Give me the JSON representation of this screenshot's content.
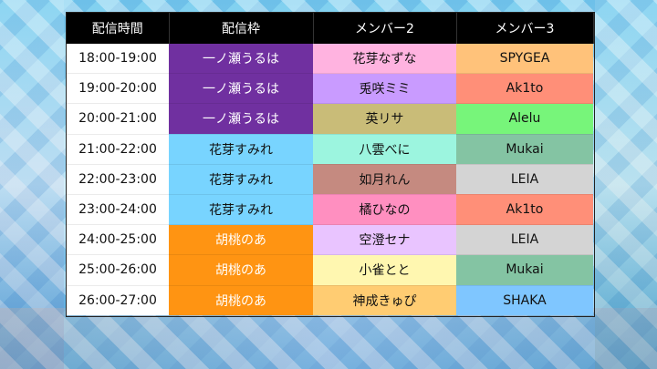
{
  "headers": [
    "配信時間",
    "配信枠",
    "メンバー2",
    "メンバー3"
  ],
  "rows": [
    {
      "time": "18:00-19:00",
      "host": "一ノ瀬うるは",
      "host_color": "#7030a0",
      "host_text": "#ffffff",
      "m2": "花芽なずな",
      "m2_color": "#ffb3e0",
      "m3": "SPYGEA",
      "m3_color": "#ffc27a"
    },
    {
      "time": "19:00-20:00",
      "host": "一ノ瀬うるは",
      "host_color": "#7030a0",
      "host_text": "#ffffff",
      "m2": "兎咲ミミ",
      "m2_color": "#c99bff",
      "m3": "Ak1to",
      "m3_color": "#ff8f78"
    },
    {
      "time": "20:00-21:00",
      "host": "一ノ瀬うるは",
      "host_color": "#7030a0",
      "host_text": "#ffffff",
      "m2": "英リサ",
      "m2_color": "#c9bc78",
      "m3": "Alelu",
      "m3_color": "#77f57a"
    },
    {
      "time": "21:00-22:00",
      "host": "花芽すみれ",
      "host_color": "#78d4ff",
      "host_text": "#111111",
      "m2": "八雲べに",
      "m2_color": "#9cf5df",
      "m3": "Mukai",
      "m3_color": "#84c4a3"
    },
    {
      "time": "22:00-23:00",
      "host": "花芽すみれ",
      "host_color": "#78d4ff",
      "host_text": "#111111",
      "m2": "如月れん",
      "m2_color": "#c58a80",
      "m3": "LEIA",
      "m3_color": "#d4d4d4"
    },
    {
      "time": "23:00-24:00",
      "host": "花芽すみれ",
      "host_color": "#78d4ff",
      "host_text": "#111111",
      "m2": "橘ひなの",
      "m2_color": "#ff8fc0",
      "m3": "Ak1to",
      "m3_color": "#ff8f78"
    },
    {
      "time": "24:00-25:00",
      "host": "胡桃のあ",
      "host_color": "#ff9412",
      "host_text": "#ffffff",
      "m2": "空澄セナ",
      "m2_color": "#e9c4ff",
      "m3": "LEIA",
      "m3_color": "#d4d4d4"
    },
    {
      "time": "25:00-26:00",
      "host": "胡桃のあ",
      "host_color": "#ff9412",
      "host_text": "#ffffff",
      "m2": "小雀とと",
      "m2_color": "#fff7b0",
      "m3": "Mukai",
      "m3_color": "#84c4a3"
    },
    {
      "time": "26:00-27:00",
      "host": "胡桃のあ",
      "host_color": "#ff9412",
      "host_text": "#ffffff",
      "m2": "神成きゅぴ",
      "m2_color": "#ffcc72",
      "m3": "SHAKA",
      "m3_color": "#7fc6ff"
    }
  ]
}
